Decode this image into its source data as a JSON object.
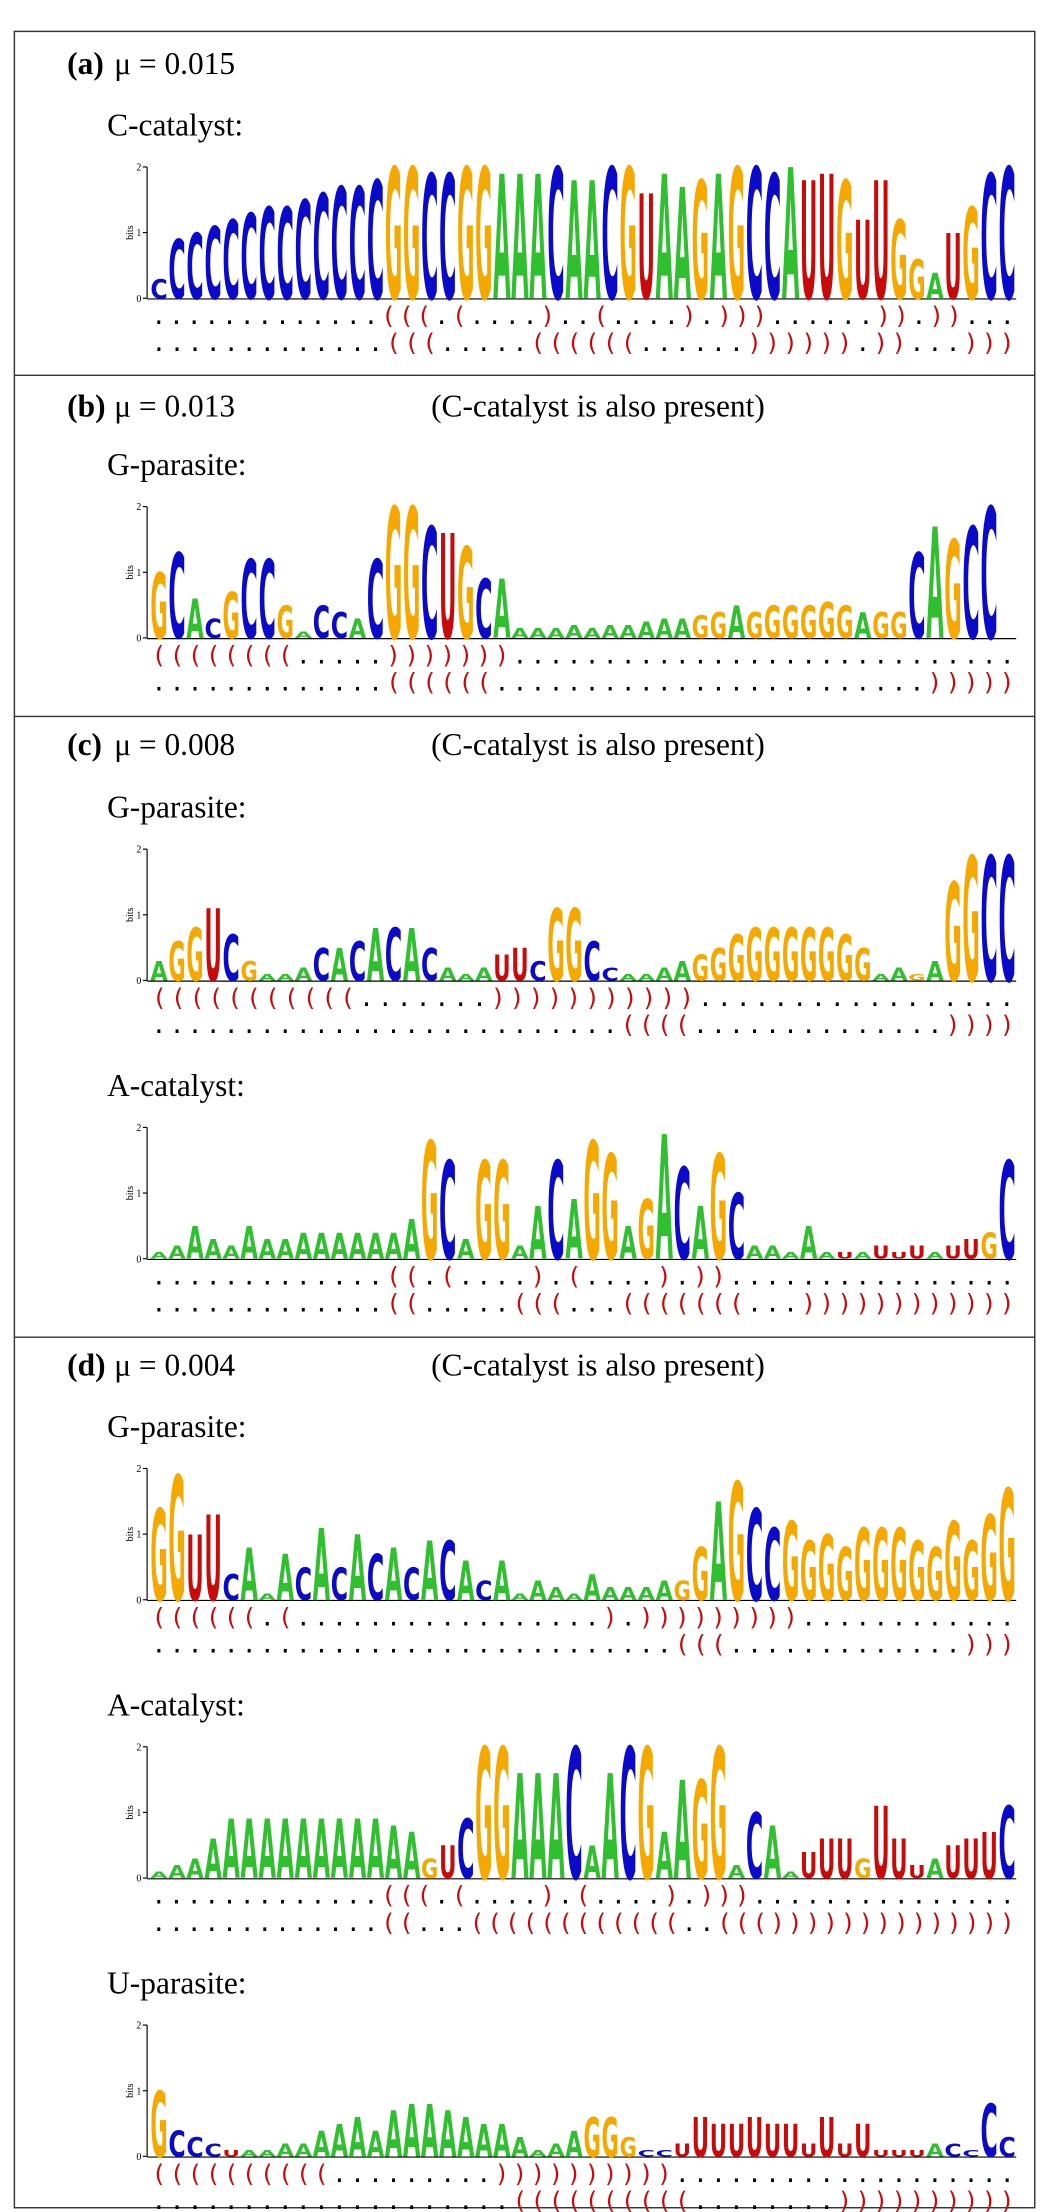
{
  "axis": {
    "ylabel": "bits",
    "ylim": [
      0,
      2
    ],
    "yticks": [
      0,
      1,
      2
    ]
  },
  "colors": {
    "A": "#2fbf2f",
    "C": "#0a0ac8",
    "G": "#f5a800",
    "U": "#c80a0a",
    "bracket": "#c80a0a",
    "dot": "#000000"
  },
  "panels": [
    {
      "label": "(a)",
      "mu": "μ = 0.015",
      "logos": [
        {
          "name": "C-catalyst:",
          "letters": "CCCCCCCCCCCCCGGCCGGAAACAACGUAAGAGCCAUUGUUGGAUGCC",
          "heights": [
            0.3,
            0.9,
            1.0,
            1.1,
            1.2,
            1.3,
            1.4,
            1.4,
            1.5,
            1.6,
            1.7,
            1.7,
            1.8,
            2,
            2,
            1.9,
            1.9,
            2,
            2,
            1.9,
            1.9,
            1.9,
            2,
            1.8,
            1.8,
            2,
            2,
            1.6,
            1.9,
            1.7,
            1.8,
            1.9,
            2,
            2,
            1.9,
            2,
            1.8,
            1.9,
            1.8,
            1.2,
            1.8,
            1.2,
            0.6,
            0.4,
            1.0,
            1.4,
            1.9,
            2
          ],
          "structure": [
            ".............(((.(....)..(....).)))......)).))...",
            ".............(((.....((((((......)))))).))...)))"
          ]
        }
      ]
    },
    {
      "label": "(b)",
      "mu": "μ = 0.013",
      "note": "(C-catalyst is also present)",
      "logos": [
        {
          "name": "G-parasite:",
          "letters": "GCACGCCGACCACGGCUGCAAAAAAAAAAAGGAGGGGGGAGGCAGCC",
          "heights": [
            1.0,
            1.3,
            0.6,
            0.3,
            0.7,
            1.2,
            1.2,
            0.5,
            0.1,
            0.5,
            0.4,
            0.3,
            1.2,
            2,
            2,
            1.7,
            1.6,
            1.4,
            0.9,
            0.9,
            0.15,
            0.15,
            0.15,
            0.2,
            0.15,
            0.2,
            0.2,
            0.25,
            0.3,
            0.3,
            0.35,
            0.4,
            0.5,
            0.4,
            0.5,
            0.5,
            0.5,
            0.55,
            0.5,
            0.4,
            0.4,
            0.4,
            1.3,
            1.7,
            1.5,
            1.7,
            2,
            2
          ],
          "structure": [
            "((((((((.....)))))))............................",
            ".............((((((........................)))))"
          ]
        }
      ]
    },
    {
      "label": "(c)",
      "mu": "μ = 0.008",
      "note": "(C-catalyst is also present)",
      "logos": [
        {
          "name": "G-parasite:",
          "letters": "AGGUCGAAACACACACAAAUUCGGCCAAAAGGGGGGGGGGAAGAGGCC",
          "heights": [
            0.3,
            0.6,
            0.8,
            1.1,
            0.7,
            0.3,
            0.1,
            0.1,
            0.2,
            0.5,
            0.5,
            0.6,
            0.8,
            0.8,
            0.8,
            0.5,
            0.2,
            0.1,
            0.2,
            0.4,
            0.5,
            0.3,
            1.1,
            1.1,
            0.6,
            0.2,
            0.1,
            0.1,
            0.2,
            0.3,
            0.4,
            0.5,
            0.7,
            0.8,
            0.8,
            0.8,
            0.8,
            0.8,
            0.7,
            0.5,
            0.1,
            0.2,
            0.1,
            0.3,
            1.5,
            1.9,
            1.9,
            1.9
          ],
          "structure": [
            "(((((((((((.......))))))))))).................",
            "..........................((((..............))))"
          ]
        },
        {
          "name": "A-catalyst:",
          "letters": "AAAAAAAAAAAAAAAGCAGGAACAGGAGACAGCAAAAAUAUUUAUUGC",
          "heights": [
            0.1,
            0.2,
            0.5,
            0.3,
            0.2,
            0.5,
            0.3,
            0.3,
            0.4,
            0.4,
            0.4,
            0.4,
            0.4,
            0.4,
            0.6,
            1.8,
            1.5,
            0.3,
            1.5,
            1.5,
            0.2,
            0.8,
            1.5,
            0.9,
            1.8,
            1.6,
            0.5,
            0.9,
            1.9,
            1.4,
            0.8,
            1.6,
            1.0,
            0.2,
            0.2,
            0.1,
            0.5,
            0.1,
            0.1,
            0.1,
            0.2,
            0.1,
            0.2,
            0.1,
            0.2,
            0.3,
            0.4,
            1.5
          ],
          "structure": [
            ".............((.(....).(....).))................",
            ".............((.....(((...(((((((...))))))))))))"
          ]
        }
      ]
    },
    {
      "label": "(d)",
      "mu": "μ = 0.004",
      "note": "(C-catalyst is also present)",
      "logos": [
        {
          "name": "G-parasite:",
          "letters": "GGUUCAAACACACACACACAAAAAAAAAAGGAGCCGGGGGGGGGGGGGC",
          "heights": [
            1.4,
            1.9,
            1.0,
            1.3,
            0.4,
            0.8,
            0.1,
            0.7,
            0.5,
            1.1,
            0.5,
            1.0,
            0.7,
            0.8,
            0.5,
            0.9,
            0.9,
            0.6,
            0.3,
            0.6,
            0.1,
            0.3,
            0.2,
            0.1,
            0.4,
            0.2,
            0.2,
            0.2,
            0.3,
            0.3,
            0.8,
            1.5,
            1.8,
            1.4,
            1.1,
            1.2,
            0.9,
            1.0,
            0.8,
            1.1,
            1.1,
            1.1,
            0.9,
            0.8,
            1.2,
            0.9,
            1.3,
            1.7
          ],
          "structure": [
            "((((((.(.................).)))))))))............",
            ".............................(((.............)))"
          ]
        },
        {
          "name": "A-catalyst:",
          "letters": "AAAAAAAAAAAAAAAGUCGGAAACAACGAAGGACAAUUUGUUUAUUUC",
          "heights": [
            0.1,
            0.2,
            0.3,
            0.6,
            0.9,
            0.9,
            0.9,
            0.9,
            0.9,
            0.9,
            0.9,
            0.9,
            0.9,
            0.8,
            0.7,
            0.3,
            0.5,
            0.9,
            2,
            2,
            1.6,
            1.6,
            1.6,
            2,
            0.5,
            1.6,
            2,
            2,
            0.7,
            1.5,
            1.5,
            2,
            0.2,
            1.0,
            0.8,
            0.1,
            0.4,
            0.6,
            0.6,
            0.3,
            1.1,
            0.6,
            0.2,
            0.3,
            0.5,
            0.6,
            0.7,
            1.1
          ],
          "structure": [
            ".............(((.(....).(....).)))...............",
            ".............((...((((((((((((..((())))))))))))))"
          ]
        },
        {
          "name": "U-parasite:",
          "letters": "GCCCUAAAAAAAAAAAAAAAAAAAGGGCCUUUUUUUUUUUUUUACCCC",
          "heights": [
            1.0,
            0.4,
            0.3,
            0.2,
            0.1,
            0.1,
            0.1,
            0.2,
            0.2,
            0.4,
            0.5,
            0.6,
            0.4,
            0.7,
            0.8,
            0.8,
            0.7,
            0.6,
            0.5,
            0.5,
            0.3,
            0.1,
            0.2,
            0.4,
            0.6,
            0.6,
            0.3,
            0.1,
            0.1,
            0.2,
            0.6,
            0.5,
            0.5,
            0.6,
            0.5,
            0.5,
            0.2,
            0.6,
            0.2,
            0.5,
            0.1,
            0.1,
            0.1,
            0.2,
            0.2,
            0.1,
            0.8,
            0.3
          ],
          "structure": [
            "((((((((((.........))))))))))...................",
            "....................((((((((((........))))))))))"
          ]
        }
      ]
    }
  ]
}
